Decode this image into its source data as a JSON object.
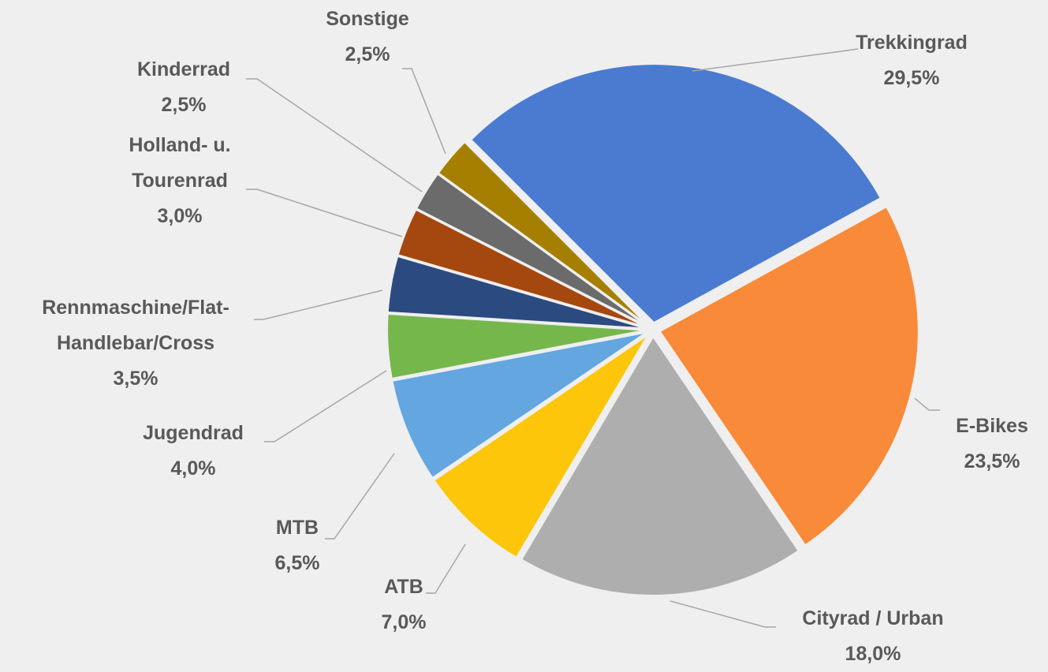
{
  "chart_data": {
    "type": "pie",
    "categories": [
      "Trekkingrad",
      "E-Bikes",
      "Cityrad / Urban",
      "ATB",
      "MTB",
      "Jugendrad",
      "Rennmaschine/Flat-Handlebar/Cross",
      "Holland- u. Tourenrad",
      "Kinderrad",
      "Sonstige"
    ],
    "values": [
      29.5,
      23.5,
      18.0,
      7.0,
      6.5,
      4.0,
      3.5,
      3.0,
      2.5,
      2.5
    ],
    "value_labels": [
      "29,5%",
      "23,5%",
      "18,0%",
      "7,0%",
      "6,5%",
      "4,0%",
      "3,5%",
      "3,0%",
      "2,5%",
      "2,5%"
    ],
    "colors": [
      "#4a7bd0",
      "#f98a3a",
      "#aeaeae",
      "#fdc60a",
      "#63a6e0",
      "#76b74c",
      "#2b4a80",
      "#a5480f",
      "#6b6b6b",
      "#a67f00"
    ]
  }
}
